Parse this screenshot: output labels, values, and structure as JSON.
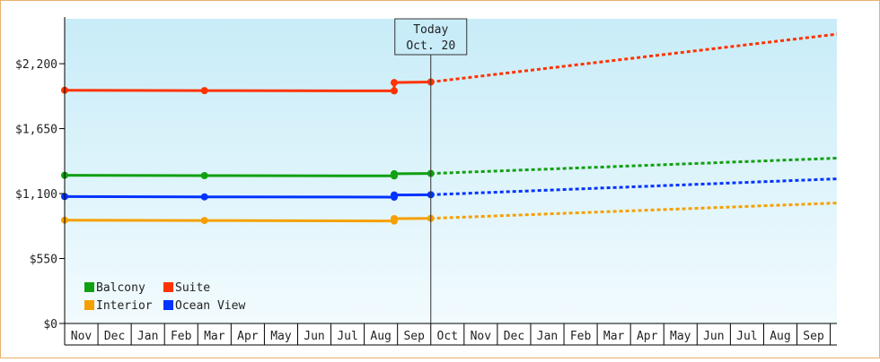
{
  "chart_data": {
    "type": "line",
    "today_marker": {
      "label_line1": "Today",
      "label_line2": "Oct. 20",
      "x": 11
    },
    "x_ticks": [
      "Nov",
      "Dec",
      "Jan",
      "Feb",
      "Mar",
      "Apr",
      "May",
      "Jun",
      "Jul",
      "Aug",
      "Sep",
      "Oct",
      "Nov",
      "Dec",
      "Jan",
      "Feb",
      "Mar",
      "Apr",
      "May",
      "Jun",
      "Jul",
      "Aug",
      "Sep"
    ],
    "x_range": [
      0,
      23.2
    ],
    "y_ticks": [
      0,
      550,
      1100,
      1650,
      2200
    ],
    "y_tick_labels": [
      "$0",
      "$550",
      "$1,100",
      "$1,650",
      "$2,200"
    ],
    "y_range": [
      0,
      2580
    ],
    "grid": false,
    "legend_position": "bottom-left",
    "series": [
      {
        "name": "Balcony",
        "color": "#11a011",
        "historical": [
          [
            0,
            1255
          ],
          [
            4.2,
            1252
          ],
          [
            9.9,
            1250
          ],
          [
            9.9,
            1268
          ],
          [
            11,
            1270
          ]
        ],
        "forecast": [
          [
            11,
            1270
          ],
          [
            23.2,
            1400
          ]
        ]
      },
      {
        "name": "Suite",
        "color": "#ff3300",
        "historical": [
          [
            0,
            1975
          ],
          [
            4.2,
            1972
          ],
          [
            9.9,
            1970
          ],
          [
            9.9,
            2040
          ],
          [
            11,
            2045
          ]
        ],
        "forecast": [
          [
            11,
            2045
          ],
          [
            23.2,
            2450
          ]
        ]
      },
      {
        "name": "Interior",
        "color": "#f5a000",
        "historical": [
          [
            0,
            875
          ],
          [
            4.2,
            872
          ],
          [
            9.9,
            868
          ],
          [
            9.9,
            888
          ],
          [
            11,
            890
          ]
        ],
        "forecast": [
          [
            11,
            890
          ],
          [
            23.2,
            1020
          ]
        ]
      },
      {
        "name": "Ocean View",
        "color": "#0033ff",
        "historical": [
          [
            0,
            1075
          ],
          [
            4.2,
            1072
          ],
          [
            9.9,
            1070
          ],
          [
            9.9,
            1088
          ],
          [
            11,
            1090
          ]
        ],
        "forecast": [
          [
            11,
            1090
          ],
          [
            23.2,
            1225
          ]
        ]
      }
    ],
    "legend": [
      {
        "label": "Balcony",
        "color": "#11a011"
      },
      {
        "label": "Suite",
        "color": "#ff3300"
      },
      {
        "label": "Interior",
        "color": "#f5a000"
      },
      {
        "label": "Ocean View",
        "color": "#0033ff"
      }
    ]
  }
}
